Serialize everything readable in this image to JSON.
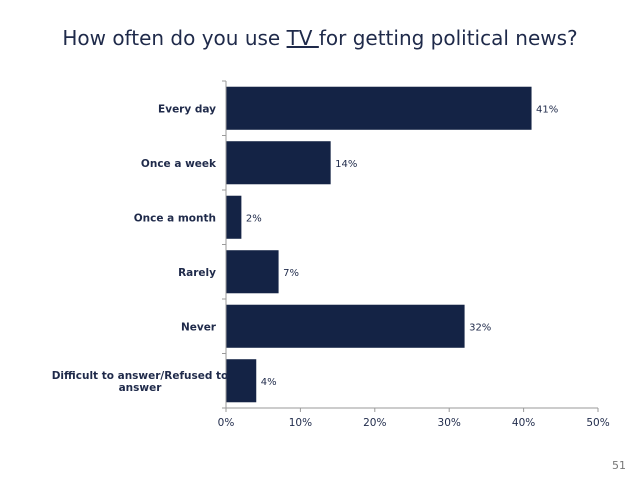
{
  "title": {
    "prefix": "How often do you use ",
    "emphasis": "TV ",
    "suffix": "for getting political news?"
  },
  "page_number": "51",
  "colors": {
    "bar": "#142345",
    "text": "#1f2a4a",
    "axis": "#9a9a9a"
  },
  "chart_data": {
    "type": "bar",
    "orientation": "horizontal",
    "categories": [
      "Every day",
      "Once a week",
      "Once a month",
      "Rarely",
      "Never",
      "Difficult to answer/Refused to answer"
    ],
    "category_lines": [
      [
        "Every day"
      ],
      [
        "Once a week"
      ],
      [
        "Once a month"
      ],
      [
        "Rarely"
      ],
      [
        "Never"
      ],
      [
        "Difficult to answer/Refused to",
        "answer"
      ]
    ],
    "values": [
      41,
      14,
      2,
      7,
      32,
      4
    ],
    "value_labels": [
      "41%",
      "14%",
      "2%",
      "7%",
      "32%",
      "4%"
    ],
    "xlim": [
      0,
      50
    ],
    "xticks": [
      0,
      10,
      20,
      30,
      40,
      50
    ],
    "xtick_labels": [
      "0%",
      "10%",
      "20%",
      "30%",
      "40%",
      "50%"
    ],
    "grid": false,
    "legend": "none"
  }
}
